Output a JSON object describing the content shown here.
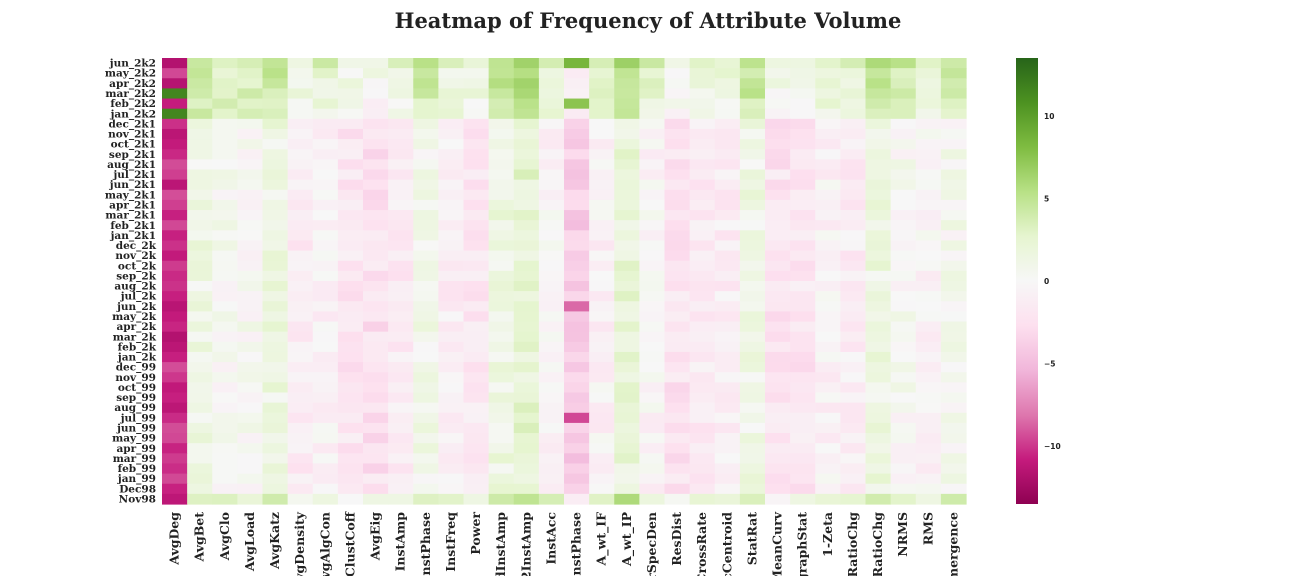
{
  "chart_data": {
    "type": "heatmap",
    "title": "Heatmap of Frequency of Attribute Volume",
    "colormap": "PiYG",
    "vmin": -13.5,
    "vmax": 13.5,
    "colorbar_ticks": [
      "10",
      "5",
      "0",
      "−5",
      "−10"
    ],
    "colorbar_tick_values": [
      10,
      5,
      0,
      -5,
      -10
    ],
    "rows": [
      "jun_2k2",
      "may_2k2",
      "apr_2k2",
      "mar_2k2",
      "feb_2k2",
      "jan_2k2",
      "dec_2k1",
      "nov_2k1",
      "oct_2k1",
      "sep_2k1",
      "aug_2k1",
      "jul_2k1",
      "jun_2k1",
      "may_2k1",
      "apr_2k1",
      "mar_2k1",
      "feb_2k1",
      "jan_2k1",
      "dec_2k",
      "nov_2k",
      "oct_2k",
      "sep_2k",
      "aug_2k",
      "jul_2k",
      "jun_2k",
      "may_2k",
      "apr_2k",
      "mar_2k",
      "feb_2k",
      "jan_2k",
      "dec_99",
      "nov_99",
      "oct_99",
      "sep_99",
      "aug_99",
      "jul_99",
      "jun_99",
      "may_99",
      "apr_99",
      "mar_99",
      "feb_99",
      "jan_99",
      "Dec98",
      "Nov98"
    ],
    "columns": [
      "AvgDeg",
      "AvgBet",
      "AvgClo",
      "AvgLoad",
      "AvgKatz",
      "vgDensity",
      "AvgAlgCon",
      "gClustCoff",
      "AvgEig",
      "InstAmp",
      "InstPhase",
      "InstFreq",
      "Power",
      "dInstAmp",
      "2InstAmp",
      "InstAcc",
      "InstPhase",
      "A_wt_IF",
      "A_wt_IP",
      "rSpecDen",
      "ResDist",
      "CrossRate",
      "cCentroid",
      "StatRat",
      "MeanCurv",
      "graphStat",
      "1-Zeta",
      "RatioChg",
      "RatioChg",
      "NRMS",
      "RMS",
      "mergence"
    ],
    "column_means": [
      -10.5,
      1.2,
      0.3,
      0.2,
      1.5,
      -1.5,
      -0.8,
      -2.0,
      -2.5,
      -1.5,
      0.8,
      -1.2,
      -1.8,
      1.5,
      2.5,
      -0.5,
      -4.0,
      -0.8,
      2.0,
      -0.5,
      -2.2,
      -1.5,
      -1.2,
      1.2,
      -2.2,
      -2.0,
      -0.8,
      -1.3,
      1.5,
      0.2,
      -0.5,
      0.5
    ],
    "row_modifiers": [
      4,
      3,
      3,
      3,
      2.5,
      2.5,
      0,
      0,
      0,
      0,
      0,
      0,
      0,
      0,
      0,
      0,
      0,
      0,
      0,
      0,
      0,
      0,
      0,
      0,
      0,
      0,
      0,
      0,
      0,
      0,
      0,
      0,
      0,
      0,
      0,
      0,
      0,
      0,
      0,
      0,
      0,
      0,
      0,
      3
    ],
    "special_cells": [
      {
        "row": "mar_2k2",
        "col": "AvgDeg",
        "value": 11.5
      },
      {
        "row": "jan_2k2",
        "col": "AvgDeg",
        "value": 11.5
      },
      {
        "row": "jun_2k2",
        "col": "InstPhase",
        "index": 16,
        "value": 8.5
      },
      {
        "row": "feb_2k2",
        "col": "InstPhase",
        "index": 16,
        "value": 7.5
      },
      {
        "row": "jun_2k",
        "col": "InstPhase",
        "index": 16,
        "value": -8.5
      },
      {
        "row": "jul_99",
        "col": "InstPhase",
        "index": 16,
        "value": -9.5
      }
    ]
  }
}
